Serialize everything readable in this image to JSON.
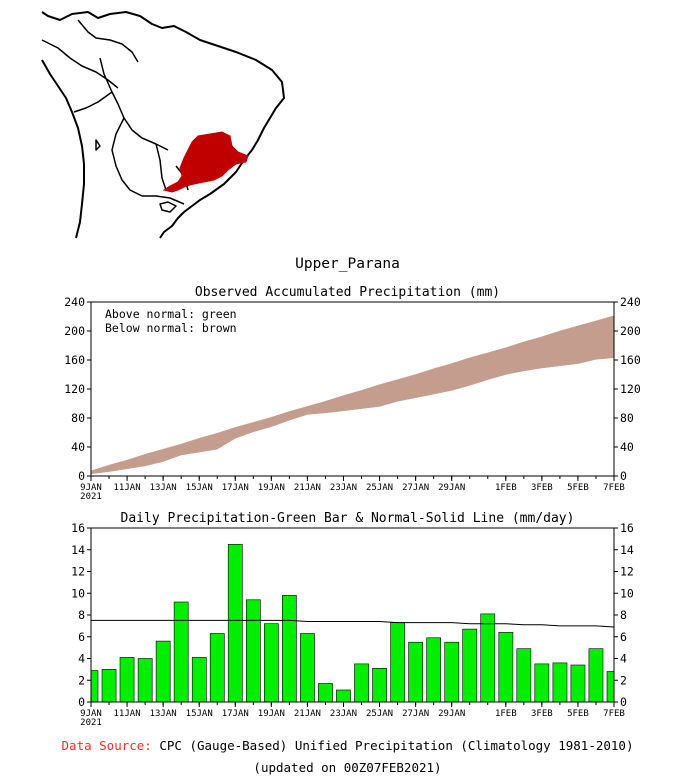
{
  "region_title": "Upper_Parana",
  "colors": {
    "above_normal": "#00b400",
    "below_normal": "#c49d8e",
    "bar": "#00ee00",
    "region": "#c00000",
    "data_source_label": "#e8322c"
  },
  "chart_data": [
    {
      "type": "area",
      "title": "Observed Accumulated Precipitation (mm)",
      "legend": [
        "Above normal: green",
        "Below normal: brown"
      ],
      "legend_position": "top-left",
      "x": [
        "9JAN",
        "10JAN",
        "11JAN",
        "12JAN",
        "13JAN",
        "14JAN",
        "15JAN",
        "16JAN",
        "17JAN",
        "18JAN",
        "19JAN",
        "20JAN",
        "21JAN",
        "22JAN",
        "23JAN",
        "24JAN",
        "25JAN",
        "26JAN",
        "27JAN",
        "28JAN",
        "29JAN",
        "30JAN",
        "31JAN",
        "1FEB",
        "2FEB",
        "3FEB",
        "4FEB",
        "5FEB",
        "6FEB",
        "7FEB"
      ],
      "x_ticks": [
        "9JAN",
        "11JAN",
        "13JAN",
        "15JAN",
        "17JAN",
        "19JAN",
        "21JAN",
        "23JAN",
        "25JAN",
        "27JAN",
        "29JAN",
        "1FEB",
        "3FEB",
        "5FEB",
        "7FEB"
      ],
      "x_year_label": "2021",
      "series": [
        {
          "name": "Observed",
          "values": [
            3,
            6,
            10,
            14,
            20,
            29,
            33,
            37,
            52,
            61,
            68,
            77,
            85,
            87,
            90,
            93,
            96,
            103,
            108,
            113,
            118,
            125,
            133,
            140,
            145,
            149,
            152,
            155,
            161,
            163
          ]
        },
        {
          "name": "Normal",
          "values": [
            7,
            15,
            22,
            30,
            37,
            44,
            52,
            59,
            67,
            74,
            81,
            89,
            96,
            103,
            111,
            118,
            126,
            133,
            140,
            148,
            155,
            163,
            170,
            177,
            185,
            192,
            200,
            207,
            214,
            221
          ]
        }
      ],
      "ylim": [
        0,
        240
      ],
      "y_ticks": [
        0,
        40,
        80,
        120,
        160,
        200,
        240
      ]
    },
    {
      "type": "bar",
      "title": "Daily Precipitation-Green Bar & Normal-Solid Line (mm/day)",
      "x": [
        "9JAN",
        "10JAN",
        "11JAN",
        "12JAN",
        "13JAN",
        "14JAN",
        "15JAN",
        "16JAN",
        "17JAN",
        "18JAN",
        "19JAN",
        "20JAN",
        "21JAN",
        "22JAN",
        "23JAN",
        "24JAN",
        "25JAN",
        "26JAN",
        "27JAN",
        "28JAN",
        "29JAN",
        "30JAN",
        "31JAN",
        "1FEB",
        "2FEB",
        "3FEB",
        "4FEB",
        "5FEB",
        "6FEB",
        "7FEB"
      ],
      "x_ticks": [
        "9JAN",
        "11JAN",
        "13JAN",
        "15JAN",
        "17JAN",
        "19JAN",
        "21JAN",
        "23JAN",
        "25JAN",
        "27JAN",
        "29JAN",
        "1FEB",
        "3FEB",
        "5FEB",
        "7FEB"
      ],
      "x_year_label": "2021",
      "series": [
        {
          "name": "Daily",
          "values": [
            2.9,
            3.0,
            4.1,
            4.0,
            5.6,
            9.2,
            4.1,
            6.3,
            14.5,
            9.4,
            7.2,
            9.8,
            6.3,
            1.7,
            1.1,
            3.5,
            3.1,
            7.3,
            5.5,
            5.9,
            5.5,
            6.7,
            8.1,
            6.4,
            4.9,
            3.5,
            3.6,
            3.4,
            4.9,
            2.8
          ]
        },
        {
          "name": "Normal",
          "values": [
            7.5,
            7.5,
            7.5,
            7.5,
            7.5,
            7.5,
            7.5,
            7.5,
            7.5,
            7.5,
            7.5,
            7.5,
            7.4,
            7.4,
            7.4,
            7.4,
            7.4,
            7.3,
            7.3,
            7.3,
            7.3,
            7.2,
            7.2,
            7.2,
            7.1,
            7.1,
            7.0,
            7.0,
            7.0,
            6.9
          ]
        }
      ],
      "ylim": [
        0,
        16
      ],
      "y_ticks": [
        0,
        2,
        4,
        6,
        8,
        10,
        12,
        14,
        16
      ]
    }
  ],
  "footer": {
    "data_source_label": "Data Source:",
    "data_source_text": "CPC (Gauge-Based) Unified Precipitation (Climatology 1981-2010)",
    "updated": "(updated on 00Z07FEB2021)"
  }
}
